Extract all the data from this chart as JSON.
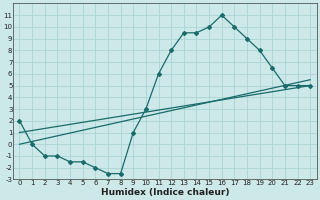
{
  "xlabel": "Humidex (Indice chaleur)",
  "bg_color": "#cce8e8",
  "grid_color": "#aad4d4",
  "line_color": "#1a6b6b",
  "xlim": [
    -0.5,
    23.5
  ],
  "ylim": [
    -3,
    12
  ],
  "xticks": [
    0,
    1,
    2,
    3,
    4,
    5,
    6,
    7,
    8,
    9,
    10,
    11,
    12,
    13,
    14,
    15,
    16,
    17,
    18,
    19,
    20,
    21,
    22,
    23
  ],
  "yticks": [
    -3,
    -2,
    -1,
    0,
    1,
    2,
    3,
    4,
    5,
    6,
    7,
    8,
    9,
    10,
    11
  ],
  "line1_x": [
    0,
    1,
    2,
    3,
    4,
    5,
    6,
    7,
    8,
    9,
    10,
    11,
    12,
    13,
    14,
    15,
    16,
    17,
    18,
    19,
    20,
    21,
    22,
    23
  ],
  "line1_y": [
    2,
    0,
    -1,
    -1,
    -1.5,
    -1.5,
    -2,
    -2.5,
    -2.5,
    1,
    3,
    6,
    8,
    9.5,
    9.5,
    10,
    11,
    10,
    9,
    8,
    6.5,
    5,
    5,
    5
  ],
  "line2_x": [
    0,
    23
  ],
  "line2_y": [
    1.0,
    5.0
  ],
  "line3_x": [
    0,
    23
  ],
  "line3_y": [
    0.0,
    5.5
  ],
  "marker": "D",
  "markersize": 2.0,
  "linewidth": 0.9,
  "tick_fontsize": 5.0,
  "xlabel_fontsize": 6.5
}
